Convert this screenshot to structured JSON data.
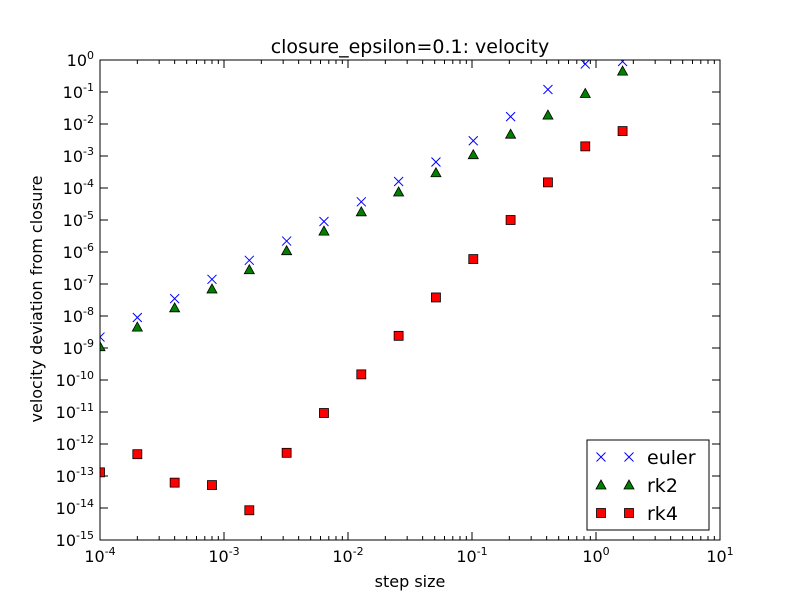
{
  "chart_data": {
    "type": "scatter",
    "title": "closure_epsilon=0.1: velocity",
    "xlabel": "step size",
    "ylabel": "velocity deviation from closure",
    "xscale": "log",
    "yscale": "log",
    "xlim": [
      0.0001,
      10
    ],
    "ylim": [
      1e-15,
      1
    ],
    "x_ticks": [
      {
        "base": "10",
        "exp": "-4",
        "value": 0.0001
      },
      {
        "base": "10",
        "exp": "-3",
        "value": 0.001
      },
      {
        "base": "10",
        "exp": "-2",
        "value": 0.01
      },
      {
        "base": "10",
        "exp": "-1",
        "value": 0.1
      },
      {
        "base": "10",
        "exp": "0",
        "value": 1
      },
      {
        "base": "10",
        "exp": "1",
        "value": 10
      }
    ],
    "y_ticks": [
      {
        "base": "10",
        "exp": "0",
        "value": 1
      },
      {
        "base": "10",
        "exp": "-1",
        "value": 0.1
      },
      {
        "base": "10",
        "exp": "-2",
        "value": 0.01
      },
      {
        "base": "10",
        "exp": "-3",
        "value": 0.001
      },
      {
        "base": "10",
        "exp": "-4",
        "value": 0.0001
      },
      {
        "base": "10",
        "exp": "-5",
        "value": 1e-05
      },
      {
        "base": "10",
        "exp": "-6",
        "value": 1e-06
      },
      {
        "base": "10",
        "exp": "-7",
        "value": 1e-07
      },
      {
        "base": "10",
        "exp": "-8",
        "value": 1e-08
      },
      {
        "base": "10",
        "exp": "-9",
        "value": 1e-09
      },
      {
        "base": "10",
        "exp": "-10",
        "value": 1e-10
      },
      {
        "base": "10",
        "exp": "-11",
        "value": 1e-11
      },
      {
        "base": "10",
        "exp": "-12",
        "value": 1e-12
      },
      {
        "base": "10",
        "exp": "-13",
        "value": 1e-13
      },
      {
        "base": "10",
        "exp": "-14",
        "value": 1e-14
      },
      {
        "base": "10",
        "exp": "-15",
        "value": 1e-15
      }
    ],
    "x": [
      0.0001,
      0.0002,
      0.0004,
      0.0008,
      0.0016,
      0.0032,
      0.0064,
      0.0128,
      0.0256,
      0.0512,
      0.1024,
      0.2048,
      0.4096,
      0.8192,
      1.6384
    ],
    "series": [
      {
        "name": "euler",
        "marker": "x",
        "color": "#0000ff",
        "values": [
          2.2e-09,
          9e-09,
          3.5e-08,
          1.4e-07,
          5.5e-07,
          2.2e-06,
          9e-06,
          3.7e-05,
          0.00016,
          0.00065,
          0.003,
          0.017,
          0.12,
          0.75,
          0.9
        ]
      },
      {
        "name": "rk2",
        "marker": "triangle",
        "color": "#007f00",
        "values": [
          1.1e-09,
          4.5e-09,
          1.8e-08,
          7e-08,
          2.8e-07,
          1.1e-06,
          4.5e-06,
          1.8e-05,
          7.5e-05,
          0.0003,
          0.0011,
          0.0048,
          0.019,
          0.09,
          0.45
        ]
      },
      {
        "name": "rk4",
        "marker": "square",
        "color": "#ff0000",
        "values": [
          1.3e-13,
          4.8e-13,
          6.2e-14,
          5.2e-14,
          8.5e-15,
          5.3e-13,
          9.3e-12,
          1.5e-10,
          2.4e-09,
          3.8e-08,
          6e-07,
          1e-05,
          0.00015,
          0.002,
          0.006
        ]
      }
    ],
    "legend": {
      "position": "lower-right",
      "entries": [
        "euler",
        "rk2",
        "rk4"
      ]
    },
    "grid": false
  }
}
